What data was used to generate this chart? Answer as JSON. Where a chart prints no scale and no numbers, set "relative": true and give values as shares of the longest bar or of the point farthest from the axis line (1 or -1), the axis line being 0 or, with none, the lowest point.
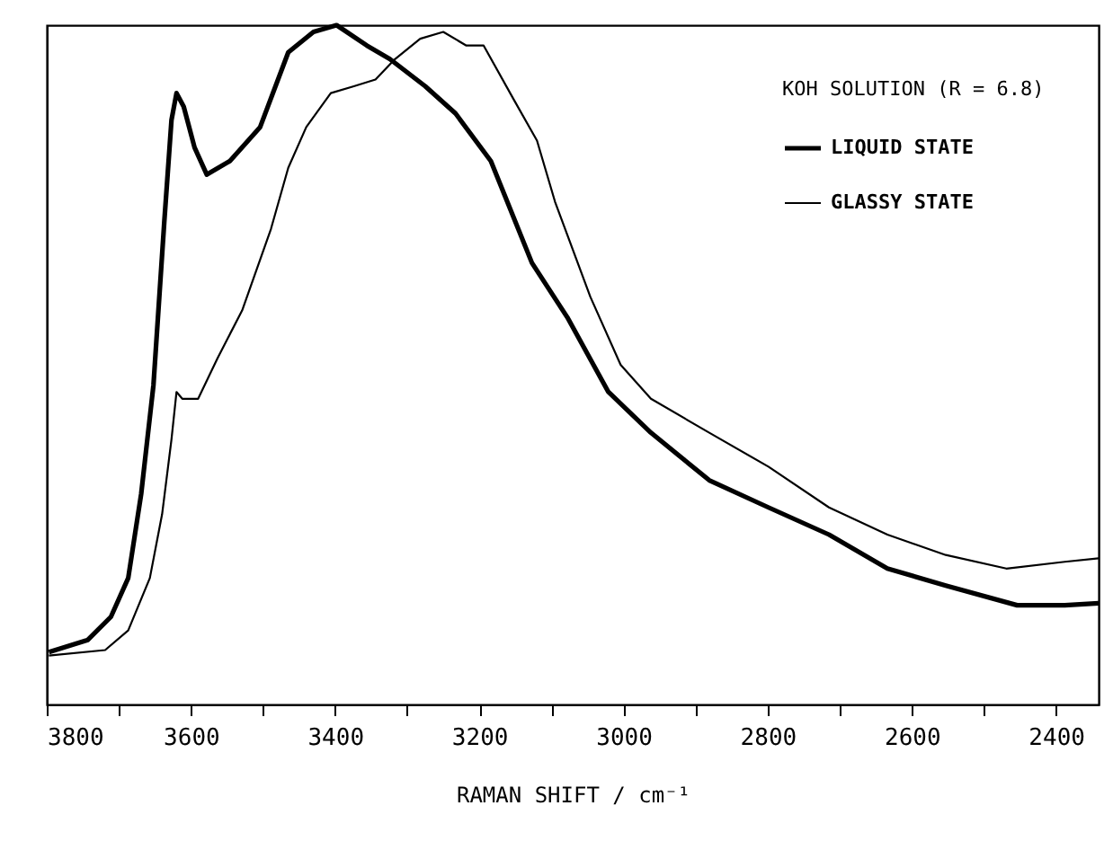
{
  "chart_data": {
    "type": "line",
    "relative": true,
    "xlabel": "RAMAN SHIFT / cm⁻¹",
    "legend_title": "KOH SOLUTION (R = 6.8)",
    "legend": "top right",
    "grid": false,
    "line_style": "solid",
    "marker": "none",
    "xlim": [
      3800,
      2341
    ],
    "xticks": [
      3800,
      {
        "value": 3700,
        "label": null
      },
      3600,
      {
        "value": 3500,
        "label": null
      },
      3400,
      {
        "value": 3300,
        "label": null
      },
      3200,
      {
        "value": 3100,
        "label": null
      },
      3000,
      {
        "value": 2900,
        "label": null
      },
      2800,
      {
        "value": 2700,
        "label": null
      },
      2600,
      {
        "value": 2500,
        "label": null
      },
      2400
    ],
    "series": [
      {
        "name": "LIQUID STATE",
        "color": "#000000",
        "x": [
          3797,
          3743,
          3711,
          3687,
          3669,
          3652,
          3637,
          3627,
          3620,
          3610,
          3595,
          3578,
          3546,
          3504,
          3465,
          3430,
          3398,
          3356,
          3324,
          3275,
          3233,
          3184,
          3127,
          3078,
          3021,
          2962,
          2881,
          2799,
          2715,
          2634,
          2553,
          2454,
          2388,
          2341
        ],
        "values": [
          0.077,
          0.095,
          0.129,
          0.186,
          0.31,
          0.47,
          0.71,
          0.86,
          0.9,
          0.88,
          0.82,
          0.78,
          0.8,
          0.85,
          0.96,
          0.99,
          1.0,
          0.97,
          0.95,
          0.91,
          0.87,
          0.8,
          0.65,
          0.57,
          0.46,
          0.4,
          0.33,
          0.29,
          0.25,
          0.2,
          0.175,
          0.146,
          0.146,
          0.149
        ]
      },
      {
        "name": "GLASSY STATE",
        "color": "#000000",
        "x": [
          3797,
          3719,
          3687,
          3657,
          3640,
          3627,
          3620,
          3612,
          3590,
          3563,
          3529,
          3489,
          3465,
          3440,
          3406,
          3374,
          3344,
          3317,
          3282,
          3250,
          3218,
          3194,
          3152,
          3120,
          3095,
          3046,
          3004,
          2962,
          2881,
          2799,
          2715,
          2634,
          2553,
          2469,
          2388,
          2341
        ],
        "values": [
          0.072,
          0.08,
          0.109,
          0.186,
          0.28,
          0.39,
          0.46,
          0.45,
          0.45,
          0.51,
          0.58,
          0.7,
          0.79,
          0.85,
          0.9,
          0.91,
          0.92,
          0.95,
          0.98,
          0.99,
          0.97,
          0.97,
          0.89,
          0.83,
          0.74,
          0.6,
          0.5,
          0.45,
          0.4,
          0.35,
          0.29,
          0.25,
          0.22,
          0.2,
          0.21,
          0.215
        ]
      }
    ]
  }
}
